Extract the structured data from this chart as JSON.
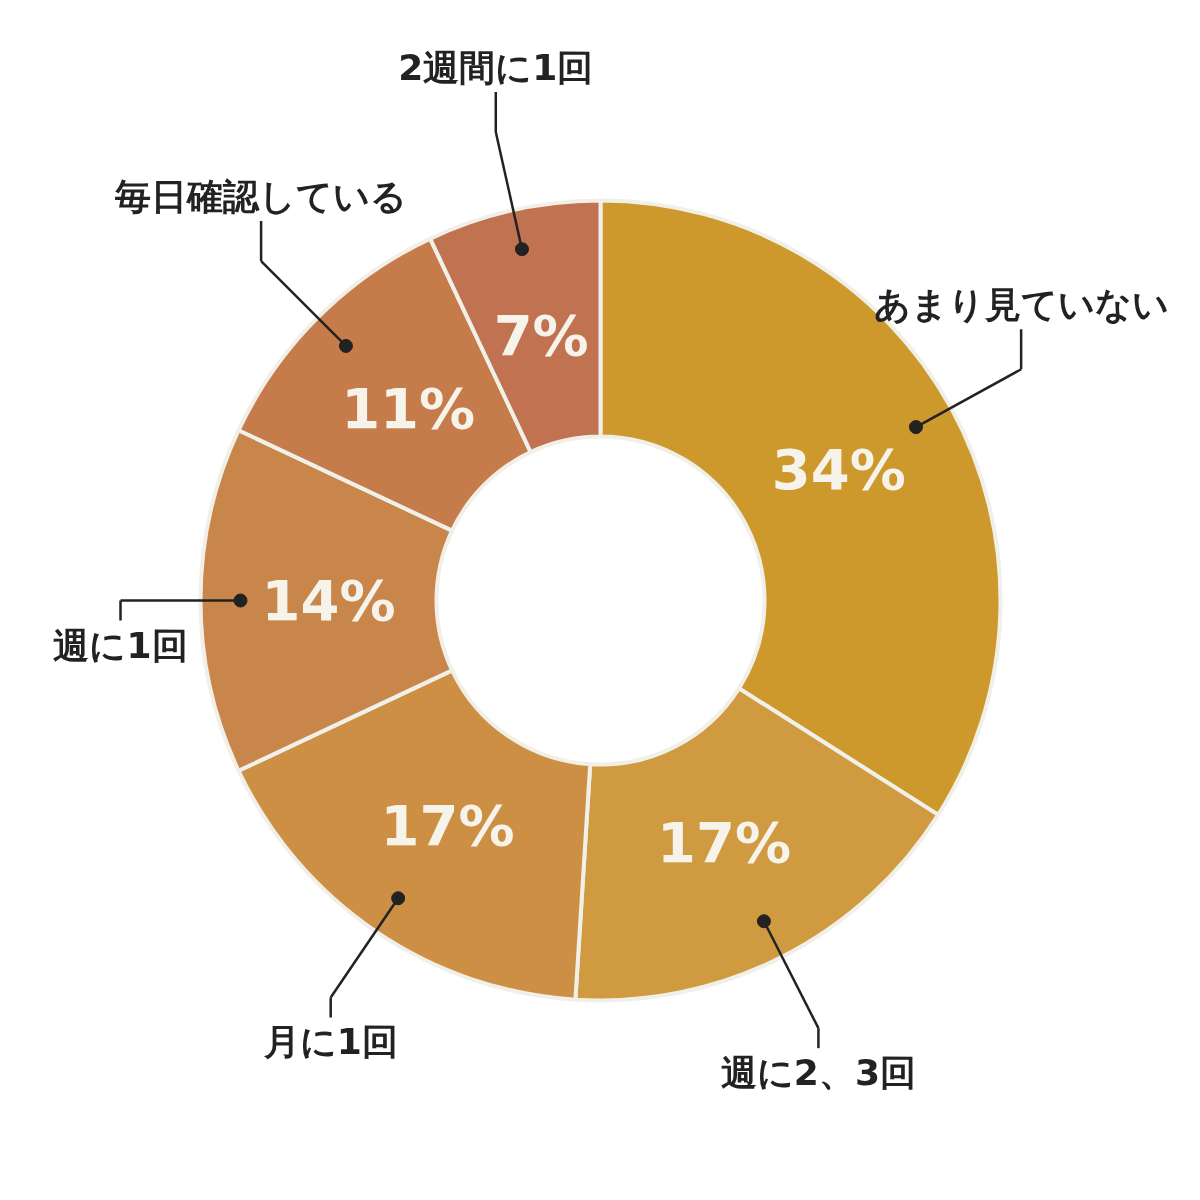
{
  "chart_data": {
    "type": "donut",
    "categories": [
      "あまり見ていない",
      "週に2、3回",
      "月に1回",
      "週に1回",
      "毎日確認している",
      "2週間に1回"
    ],
    "values": [
      34,
      17,
      17,
      14,
      11,
      7
    ],
    "colors": [
      "#cd982c",
      "#cf9a40",
      "#cd8f44",
      "#c9864a",
      "#c67b4b",
      "#c07251"
    ],
    "value_labels": [
      "34%",
      "17%",
      "17%",
      "14%",
      "11%",
      "7%"
    ]
  }
}
